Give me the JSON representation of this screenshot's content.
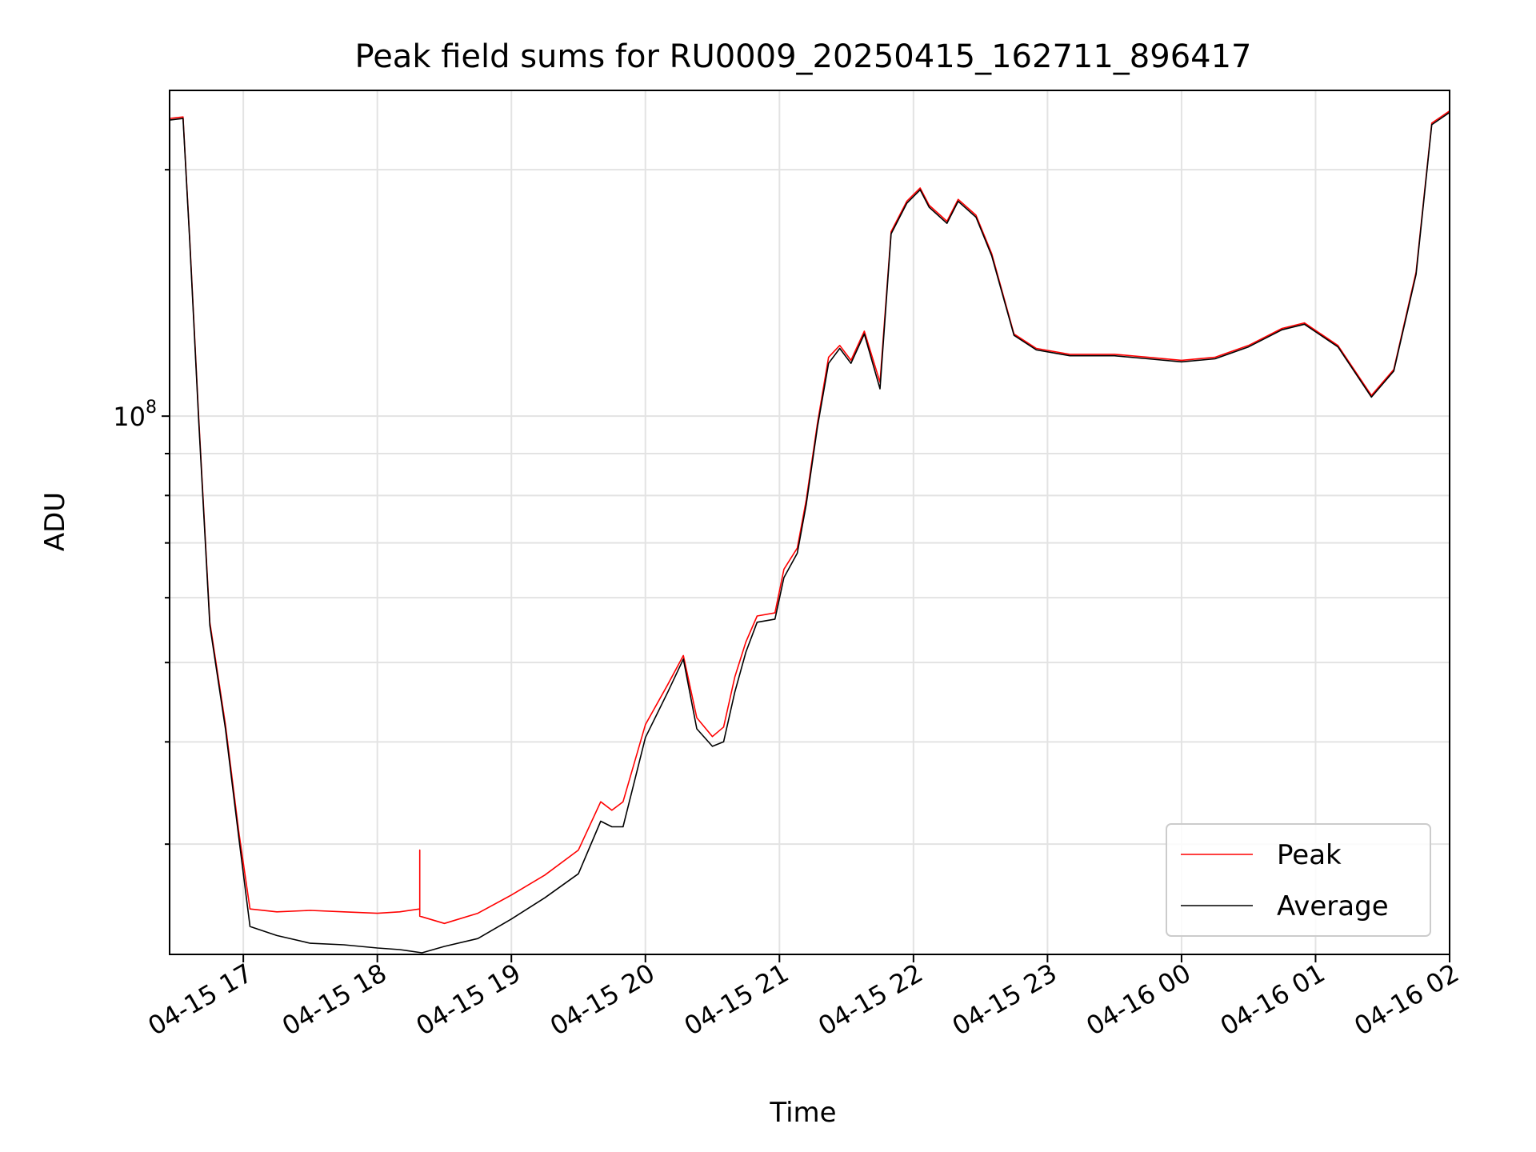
{
  "chart_data": {
    "type": "line",
    "title": "Peak field sums for RU0009_20250415_162711_896417",
    "xlabel": "Time",
    "ylabel": "ADU",
    "x_tick_labels": [
      "04-15 17",
      "04-15 18",
      "04-15 19",
      "04-15 20",
      "04-15 21",
      "04-15 22",
      "04-15 23",
      "04-16 00",
      "04-16 01",
      "04-16 02"
    ],
    "x_ticks": [
      "2025-04-15 17:00",
      "2025-04-15 18:00",
      "2025-04-15 19:00",
      "2025-04-15 20:00",
      "2025-04-15 21:00",
      "2025-04-15 22:00",
      "2025-04-15 23:00",
      "2025-04-16 00:00",
      "2025-04-16 01:00",
      "2025-04-16 02:00"
    ],
    "xlim": [
      "2025-04-15 16:27",
      "2025-04-16 02:00"
    ],
    "y_scale": "log",
    "y_tick_label": {
      "base": "10",
      "exponent": "8"
    },
    "y_major_tick": 100000000,
    "ylim": [
      22000000,
      250000000
    ],
    "grid": true,
    "legend_location": "lower-right",
    "series": [
      {
        "name": "Peak",
        "color": "#ff0000",
        "x": [
          "2025-04-15 16:27",
          "2025-04-15 16:33",
          "2025-04-15 16:36",
          "2025-04-15 16:40",
          "2025-04-15 16:45",
          "2025-04-15 16:52",
          "2025-04-15 16:58",
          "2025-04-15 17:03",
          "2025-04-15 17:15",
          "2025-04-15 17:30",
          "2025-04-15 17:45",
          "2025-04-15 18:00",
          "2025-04-15 18:10",
          "2025-04-15 18:19",
          "2025-04-15 18:19",
          "2025-04-15 18:19",
          "2025-04-15 18:30",
          "2025-04-15 18:45",
          "2025-04-15 19:00",
          "2025-04-15 19:15",
          "2025-04-15 19:30",
          "2025-04-15 19:40",
          "2025-04-15 19:45",
          "2025-04-15 19:50",
          "2025-04-15 20:00",
          "2025-04-15 20:10",
          "2025-04-15 20:17",
          "2025-04-15 20:23",
          "2025-04-15 20:30",
          "2025-04-15 20:35",
          "2025-04-15 20:40",
          "2025-04-15 20:45",
          "2025-04-15 20:50",
          "2025-04-15 20:58",
          "2025-04-15 21:02",
          "2025-04-15 21:08",
          "2025-04-15 21:12",
          "2025-04-15 21:17",
          "2025-04-15 21:22",
          "2025-04-15 21:27",
          "2025-04-15 21:32",
          "2025-04-15 21:38",
          "2025-04-15 21:45",
          "2025-04-15 21:50",
          "2025-04-15 21:57",
          "2025-04-15 22:03",
          "2025-04-15 22:07",
          "2025-04-15 22:15",
          "2025-04-15 22:20",
          "2025-04-15 22:28",
          "2025-04-15 22:35",
          "2025-04-15 22:45",
          "2025-04-15 22:55",
          "2025-04-15 23:10",
          "2025-04-15 23:30",
          "2025-04-15 23:45",
          "2025-04-16 00:00",
          "2025-04-16 00:15",
          "2025-04-16 00:30",
          "2025-04-16 00:45",
          "2025-04-16 00:55",
          "2025-04-16 01:10",
          "2025-04-16 01:25",
          "2025-04-16 01:35",
          "2025-04-16 01:45",
          "2025-04-16 01:52",
          "2025-04-16 02:00"
        ],
        "y": [
          231000000,
          232000000,
          165000000,
          100000000,
          56000000,
          42000000,
          31000000,
          25000000,
          24800000,
          24900000,
          24800000,
          24700000,
          24800000,
          25000000,
          29500000,
          24500000,
          24000000,
          24700000,
          26000000,
          27500000,
          29500000,
          33800000,
          33000000,
          33800000,
          42000000,
          47000000,
          51000000,
          42800000,
          40600000,
          41700000,
          48000000,
          53000000,
          57000000,
          57500000,
          65000000,
          69000000,
          79000000,
          98000000,
          118000000,
          122000000,
          117000000,
          127000000,
          110000000,
          168000000,
          183000000,
          190000000,
          181000000,
          173000000,
          184000000,
          176000000,
          158000000,
          126000000,
          121000000,
          119000000,
          119000000,
          118000000,
          117000000,
          118000000,
          122000000,
          128000000,
          130000000,
          122000000,
          106000000,
          114000000,
          150000000,
          228000000,
          236000000
        ]
      },
      {
        "name": "Average",
        "color": "#000000",
        "x": [
          "2025-04-15 16:27",
          "2025-04-15 16:33",
          "2025-04-15 16:36",
          "2025-04-15 16:40",
          "2025-04-15 16:45",
          "2025-04-15 16:52",
          "2025-04-15 16:58",
          "2025-04-15 17:03",
          "2025-04-15 17:15",
          "2025-04-15 17:30",
          "2025-04-15 17:45",
          "2025-04-15 18:00",
          "2025-04-15 18:10",
          "2025-04-15 18:20",
          "2025-04-15 18:30",
          "2025-04-15 18:45",
          "2025-04-15 19:00",
          "2025-04-15 19:15",
          "2025-04-15 19:30",
          "2025-04-15 19:40",
          "2025-04-15 19:45",
          "2025-04-15 19:50",
          "2025-04-15 20:00",
          "2025-04-15 20:10",
          "2025-04-15 20:17",
          "2025-04-15 20:23",
          "2025-04-15 20:30",
          "2025-04-15 20:35",
          "2025-04-15 20:40",
          "2025-04-15 20:45",
          "2025-04-15 20:50",
          "2025-04-15 20:58",
          "2025-04-15 21:02",
          "2025-04-15 21:08",
          "2025-04-15 21:12",
          "2025-04-15 21:17",
          "2025-04-15 21:22",
          "2025-04-15 21:27",
          "2025-04-15 21:32",
          "2025-04-15 21:38",
          "2025-04-15 21:45",
          "2025-04-15 21:50",
          "2025-04-15 21:57",
          "2025-04-15 22:03",
          "2025-04-15 22:07",
          "2025-04-15 22:15",
          "2025-04-15 22:20",
          "2025-04-15 22:28",
          "2025-04-15 22:35",
          "2025-04-15 22:45",
          "2025-04-15 22:55",
          "2025-04-15 23:10",
          "2025-04-15 23:30",
          "2025-04-15 23:45",
          "2025-04-16 00:00",
          "2025-04-16 00:15",
          "2025-04-16 00:30",
          "2025-04-16 00:45",
          "2025-04-16 00:55",
          "2025-04-16 01:10",
          "2025-04-16 01:25",
          "2025-04-16 01:35",
          "2025-04-16 01:45",
          "2025-04-16 01:52",
          "2025-04-16 02:00"
        ],
        "y": [
          230000000,
          231000000,
          164000000,
          99000000,
          55500000,
          41500000,
          30500000,
          23800000,
          23200000,
          22700000,
          22600000,
          22400000,
          22300000,
          22100000,
          22500000,
          23000000,
          24300000,
          25800000,
          27600000,
          32000000,
          31500000,
          31500000,
          40500000,
          46000000,
          50500000,
          41500000,
          39500000,
          40000000,
          46000000,
          51500000,
          56000000,
          56500000,
          63500000,
          68000000,
          78000000,
          97000000,
          116000000,
          121000000,
          116000000,
          126000000,
          108000000,
          167000000,
          182000000,
          189000000,
          180000000,
          172000000,
          183000000,
          175000000,
          157000000,
          125500000,
          120500000,
          118500000,
          118500000,
          117500000,
          116500000,
          117500000,
          121500000,
          127500000,
          129500000,
          121500000,
          105500000,
          113500000,
          149000000,
          227000000,
          235000000
        ]
      }
    ]
  }
}
